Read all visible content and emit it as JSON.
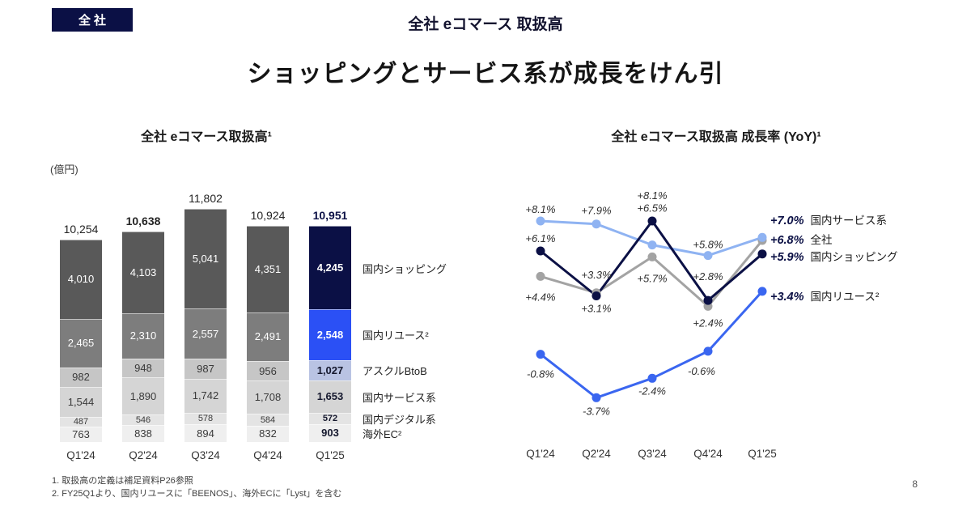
{
  "slide": {
    "badge": "全社",
    "header_title": "全社 eコマース 取扱高",
    "headline": "ショッピングとサービス系が成長をけん引",
    "footnote_1": "1.  取扱高の定義は補足資料P26参照",
    "footnote_2": "2.  FY25Q1より、国内リユースに「BEENOS」、海外ECに「Lyst」を含む",
    "page_number": "8"
  },
  "colors": {
    "navy": "#0b1045",
    "blue": "#2b50f5",
    "light_blue": "#8fb3f2",
    "gray_line": "#a3a3a3",
    "periwinkle": "#b9c3e3"
  },
  "chart_data": [
    {
      "type": "bar",
      "stacked": true,
      "title": "全社 eコマース取扱高¹",
      "unit_label": "(億円)",
      "categories": [
        "Q1'24",
        "Q2'24",
        "Q3'24",
        "Q4'24",
        "Q1'25"
      ],
      "totals": [
        10254,
        10638,
        11802,
        10924,
        10951
      ],
      "total_labels": [
        "10,254",
        "10,638",
        "11,802",
        "10,924",
        "10,951"
      ],
      "bold_total_indices": [
        1,
        4
      ],
      "highlight_column": 4,
      "series": [
        {
          "name": "国内ショッピング",
          "values": [
            4010,
            4103,
            5041,
            4351,
            4245
          ],
          "labels": [
            "4,010",
            "4,103",
            "5,041",
            "4,351",
            "4,245"
          ],
          "color": "#595959",
          "highlight_color": "#0b1045"
        },
        {
          "name": "国内リユース²",
          "values": [
            2465,
            2310,
            2557,
            2491,
            2548
          ],
          "labels": [
            "2,465",
            "2,310",
            "2,557",
            "2,491",
            "2,548"
          ],
          "color": "#7d7d7d",
          "highlight_color": "#2b50f5"
        },
        {
          "name": "アスクルBtoB",
          "values": [
            982,
            948,
            987,
            956,
            1027
          ],
          "labels": [
            "982",
            "948",
            "987",
            "956",
            "1,027"
          ],
          "color": "#c6c6c6",
          "highlight_color": "#b9c3e3"
        },
        {
          "name": "国内サービス系",
          "values": [
            1544,
            1890,
            1742,
            1708,
            1653
          ],
          "labels": [
            "1,544",
            "1,890",
            "1,742",
            "1,708",
            "1,653"
          ],
          "color": "#d5d5d5",
          "highlight_color": "#d5d5d5"
        },
        {
          "name": "国内デジタル系",
          "values": [
            487,
            546,
            578,
            584,
            572
          ],
          "labels": [
            "487",
            "546",
            "578",
            "584",
            "572"
          ],
          "color": "#e4e4e4",
          "highlight_color": "#e4e4e4"
        },
        {
          "name": "海外EC²",
          "values": [
            763,
            838,
            894,
            832,
            903
          ],
          "labels": [
            "763",
            "838",
            "894",
            "832",
            "903"
          ],
          "color": "#efefef",
          "highlight_color": "#efefef"
        }
      ]
    },
    {
      "type": "line",
      "title": "全社 eコマース取扱高 成長率 (YoY)¹",
      "unit": "%",
      "categories": [
        "Q1'24",
        "Q2'24",
        "Q3'24",
        "Q4'24",
        "Q1'25"
      ],
      "series": [
        {
          "name": "国内サービス系",
          "values": [
            8.1,
            7.9,
            6.5,
            5.8,
            7.0
          ],
          "point_labels": [
            "+8.1%",
            "+7.9%",
            "+6.5%",
            "+5.8%"
          ],
          "end_value_label": "+7.0%",
          "color": "#8fb3f2"
        },
        {
          "name": "全社",
          "values": [
            4.4,
            3.3,
            5.7,
            2.4,
            6.8
          ],
          "point_labels": [
            "+4.4%",
            "+3.3%",
            "+5.7%",
            "+2.4%"
          ],
          "end_value_label": "+6.8%",
          "color": "#a3a3a3"
        },
        {
          "name": "国内ショッピング",
          "values": [
            6.1,
            3.1,
            8.1,
            2.8,
            5.9
          ],
          "point_labels": [
            "+6.1%",
            "+3.1%",
            "+8.1%",
            "+2.8%"
          ],
          "end_value_label": "+5.9%",
          "color": "#0b1045"
        },
        {
          "name": "国内リユース²",
          "values": [
            -0.8,
            -3.7,
            -2.4,
            -0.6,
            3.4
          ],
          "point_labels": [
            "-0.8%",
            "-3.7%",
            "-2.4%",
            "-0.6%"
          ],
          "end_value_label": "+3.4%",
          "color": "#3a66f0"
        }
      ]
    }
  ]
}
